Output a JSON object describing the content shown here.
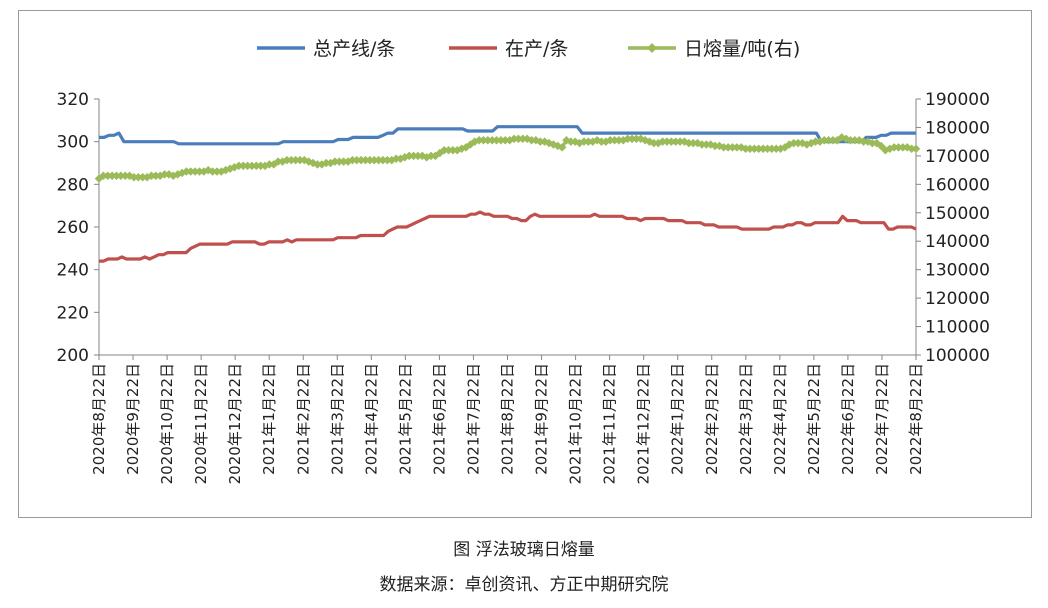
{
  "caption": "图  浮法玻璃日熔量",
  "source": "数据来源：卓创资讯、方正中期研究院",
  "chart_data": {
    "type": "line",
    "legend_position": "top",
    "grid": false,
    "y_left": {
      "min": 200,
      "max": 320,
      "ticks": [
        "200",
        "220",
        "240",
        "260",
        "280",
        "300",
        "320"
      ]
    },
    "y_right": {
      "min": 100000,
      "max": 190000,
      "ticks": [
        "100000",
        "110000",
        "120000",
        "130000",
        "140000",
        "150000",
        "160000",
        "170000",
        "180000",
        "190000"
      ]
    },
    "x_labels": [
      "2020年8月22日",
      "2020年9月22日",
      "2020年10月22日",
      "2020年11月22日",
      "2020年12月22日",
      "2021年1月22日",
      "2021年2月22日",
      "2021年3月22日",
      "2021年4月22日",
      "2021年5月22日",
      "2021年6月22日",
      "2021年7月22日",
      "2021年8月22日",
      "2021年9月22日",
      "2021年10月22日",
      "2021年11月22日",
      "2021年12月22日",
      "2022年1月22日",
      "2022年2月22日",
      "2022年3月22日",
      "2022年4月22日",
      "2022年5月22日",
      "2022年6月22日",
      "2022年7月22日",
      "2022年8月22日"
    ],
    "series": [
      {
        "name": "总产线/条",
        "axis": "left",
        "color": "#4a7ebb",
        "marker": "none",
        "values": [
          302,
          302,
          303,
          303,
          304,
          300,
          300,
          300,
          300,
          300,
          300,
          300,
          300,
          300,
          300,
          300,
          299,
          299,
          299,
          299,
          299,
          299,
          299,
          299,
          299,
          299,
          299,
          299,
          299,
          299,
          299,
          299,
          299,
          299,
          299,
          299,
          299,
          300,
          300,
          300,
          300,
          300,
          300,
          300,
          300,
          300,
          300,
          300,
          301,
          301,
          301,
          302,
          302,
          302,
          302,
          302,
          302,
          303,
          304,
          304,
          306,
          306,
          306,
          306,
          306,
          306,
          306,
          306,
          306,
          306,
          306,
          306,
          306,
          306,
          305,
          305,
          305,
          305,
          305,
          305,
          307,
          307,
          307,
          307,
          307,
          307,
          307,
          307,
          307,
          307,
          307,
          307,
          307,
          307,
          307,
          307,
          307,
          304,
          304,
          304,
          304,
          304,
          304,
          304,
          304,
          304,
          304,
          304,
          304,
          304,
          304,
          304,
          304,
          304,
          304,
          304,
          304,
          304,
          304,
          304,
          304,
          304,
          304,
          304,
          304,
          304,
          304,
          304,
          304,
          304,
          304,
          304,
          304,
          304,
          304,
          304,
          304,
          304,
          304,
          304,
          304,
          304,
          304,
          304,
          304,
          300,
          300,
          300,
          300,
          300,
          300,
          300,
          300,
          300,
          302,
          302,
          302,
          303,
          303,
          304,
          304,
          304,
          304,
          304,
          304
        ]
      },
      {
        "name": "在产/条",
        "axis": "left",
        "color": "#c0504d",
        "marker": "none",
        "values": [
          244,
          244,
          245,
          245,
          245,
          246,
          245,
          245,
          245,
          245,
          246,
          245,
          246,
          247,
          247,
          248,
          248,
          248,
          248,
          248,
          250,
          251,
          252,
          252,
          252,
          252,
          252,
          252,
          252,
          253,
          253,
          253,
          253,
          253,
          253,
          252,
          252,
          253,
          253,
          253,
          253,
          254,
          253,
          254,
          254,
          254,
          254,
          254,
          254,
          254,
          254,
          254,
          255,
          255,
          255,
          255,
          255,
          256,
          256,
          256,
          256,
          256,
          256,
          258,
          259,
          260,
          260,
          260,
          261,
          262,
          263,
          264,
          265,
          265,
          265,
          265,
          265,
          265,
          265,
          265,
          265,
          266,
          266,
          267,
          266,
          266,
          265,
          265,
          265,
          265,
          264,
          264,
          263,
          263,
          265,
          266,
          265,
          265,
          265,
          265,
          265,
          265,
          265,
          265,
          265,
          265,
          265,
          265,
          266,
          265,
          265,
          265,
          265,
          265,
          265,
          264,
          264,
          264,
          263,
          264,
          264,
          264,
          264,
          264,
          263,
          263,
          263,
          263,
          262,
          262,
          262,
          262,
          261,
          261,
          261,
          260,
          260,
          260,
          260,
          260,
          259,
          259,
          259,
          259,
          259,
          259,
          259,
          260,
          260,
          260,
          261,
          261,
          262,
          262,
          261,
          261,
          262,
          262,
          262,
          262,
          262,
          262,
          265,
          263,
          263,
          263,
          262,
          262,
          262,
          262,
          262,
          262,
          259,
          259,
          260,
          260,
          260,
          260,
          259
        ]
      },
      {
        "name": "日熔量/吨(右)",
        "axis": "right",
        "color": "#9bbb59",
        "marker": "diamond",
        "values": [
          162000,
          163000,
          163000,
          163000,
          163000,
          163000,
          163000,
          163000,
          162500,
          162500,
          162500,
          162500,
          163000,
          163000,
          163000,
          163500,
          163500,
          163000,
          163500,
          164000,
          164500,
          164500,
          164500,
          164500,
          164500,
          165000,
          164500,
          164500,
          164500,
          165000,
          165500,
          166000,
          166500,
          166500,
          166500,
          166500,
          166500,
          166500,
          166500,
          167000,
          167000,
          168000,
          168000,
          168500,
          168500,
          168500,
          168500,
          168500,
          168000,
          167500,
          167000,
          167000,
          167500,
          167500,
          168000,
          168000,
          168000,
          168000,
          168500,
          168500,
          168500,
          168500,
          168500,
          168500,
          168500,
          168500,
          168500,
          168500,
          169000,
          169000,
          169500,
          170000,
          170000,
          170000,
          170000,
          169500,
          170000,
          170000,
          171000,
          172000,
          172000,
          172000,
          172000,
          172500,
          173000,
          174000,
          175000,
          175500,
          175500,
          175500,
          175500,
          175500,
          175500,
          175500,
          175500,
          176000,
          176000,
          176000,
          176000,
          175500,
          175500,
          175000,
          175000,
          174500,
          174000,
          173500,
          173000,
          175500,
          175000,
          175000,
          174500,
          175000,
          175000,
          175000,
          175500,
          175000,
          175000,
          175500,
          175500,
          175500,
          175500,
          176000,
          176000,
          176000,
          176000,
          175500,
          175000,
          174500,
          174500,
          175000,
          175000,
          175000,
          175000,
          175000,
          175000,
          174500,
          174500,
          174500,
          174000,
          174000,
          174000,
          173500,
          173500,
          173000,
          173000,
          173000,
          173000,
          173000,
          172500,
          172500,
          172500,
          172500,
          172500,
          172500,
          172500,
          172500,
          172500,
          173000,
          174000,
          174500,
          174500,
          174500,
          174000,
          174500,
          175000,
          175000,
          175500,
          175500,
          175500,
          175500,
          176500,
          176000,
          175500,
          175500,
          175500,
          175000,
          175000,
          174500,
          174500,
          173500,
          172000,
          172500,
          173000,
          173000,
          173000,
          173000,
          172500,
          172500
        ]
      }
    ]
  }
}
